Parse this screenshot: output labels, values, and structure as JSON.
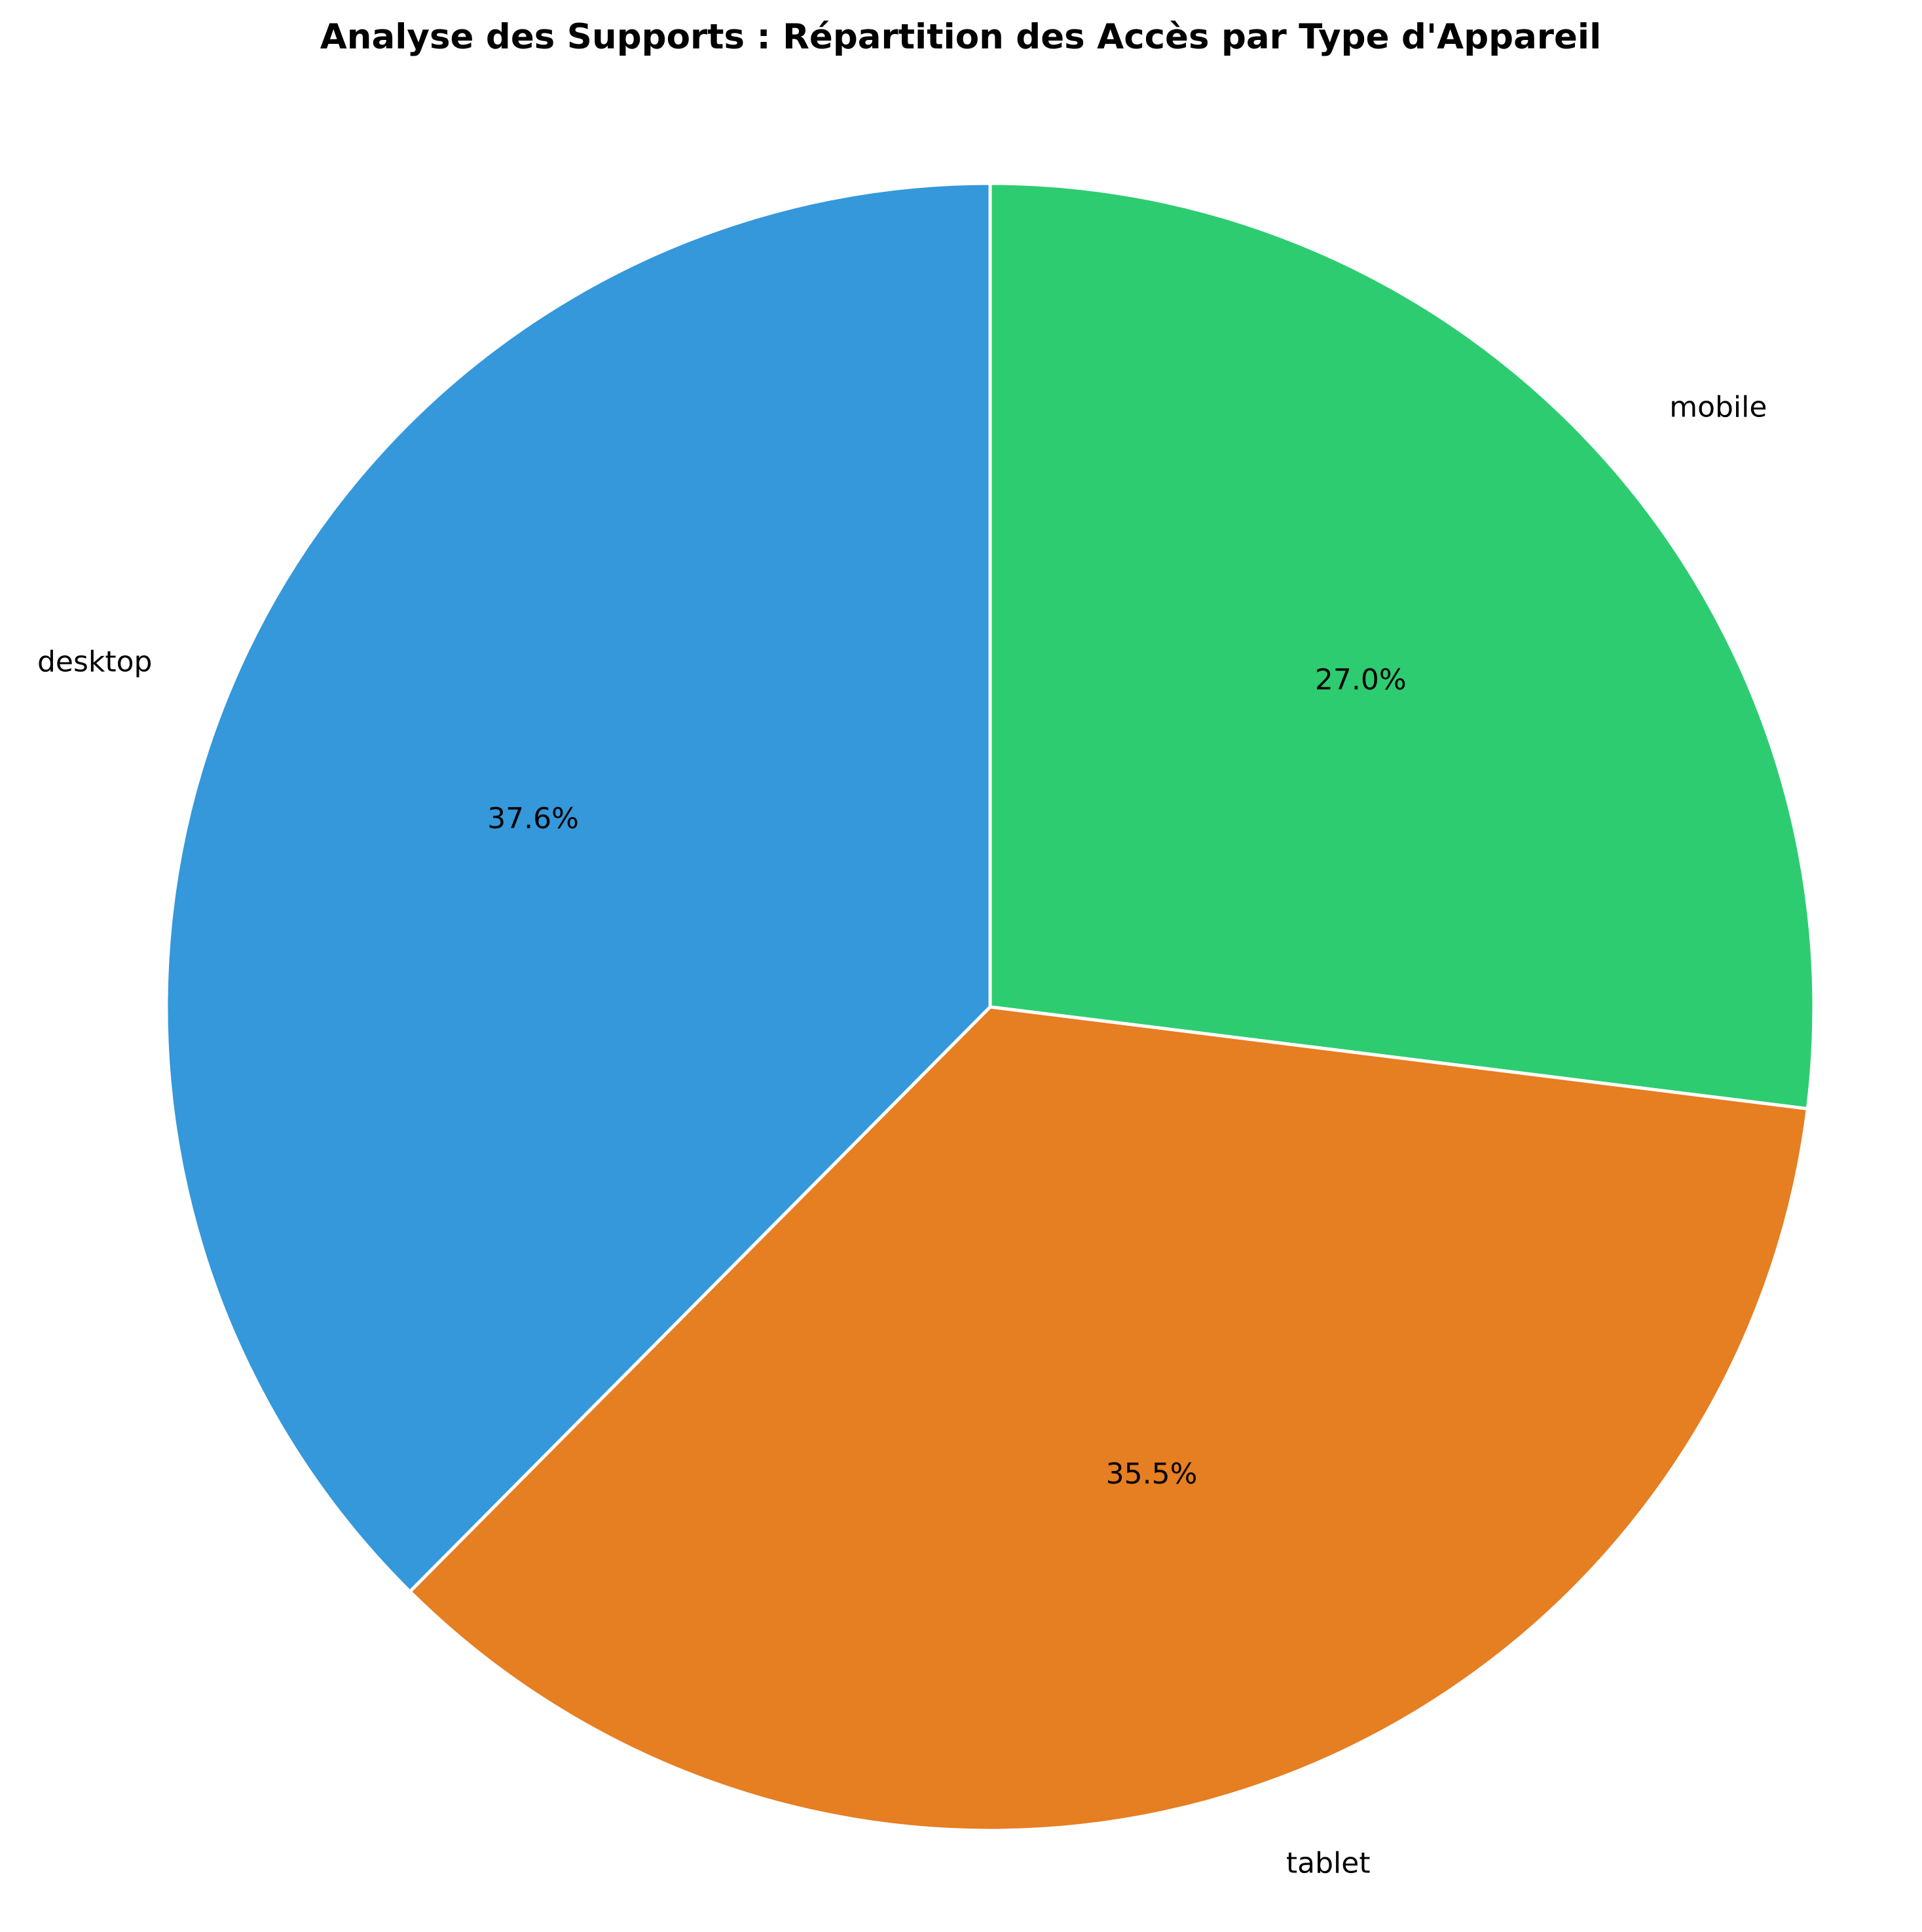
{
  "chart_data": {
    "type": "pie",
    "title": "Analyse des Supports : Répartition des Accès par Type d'Appareil",
    "categories": [
      "mobile",
      "tablet",
      "desktop"
    ],
    "values": [
      27.0,
      35.5,
      37.6
    ],
    "percent_labels": [
      "27.0%",
      "35.5%",
      "37.6%"
    ],
    "colors": [
      "#2ecc71",
      "#e67e22",
      "#3498db"
    ],
    "start_angle_deg": 90,
    "direction": "clockwise",
    "wedge_edge_color": "#ffffff",
    "legend": "none"
  }
}
